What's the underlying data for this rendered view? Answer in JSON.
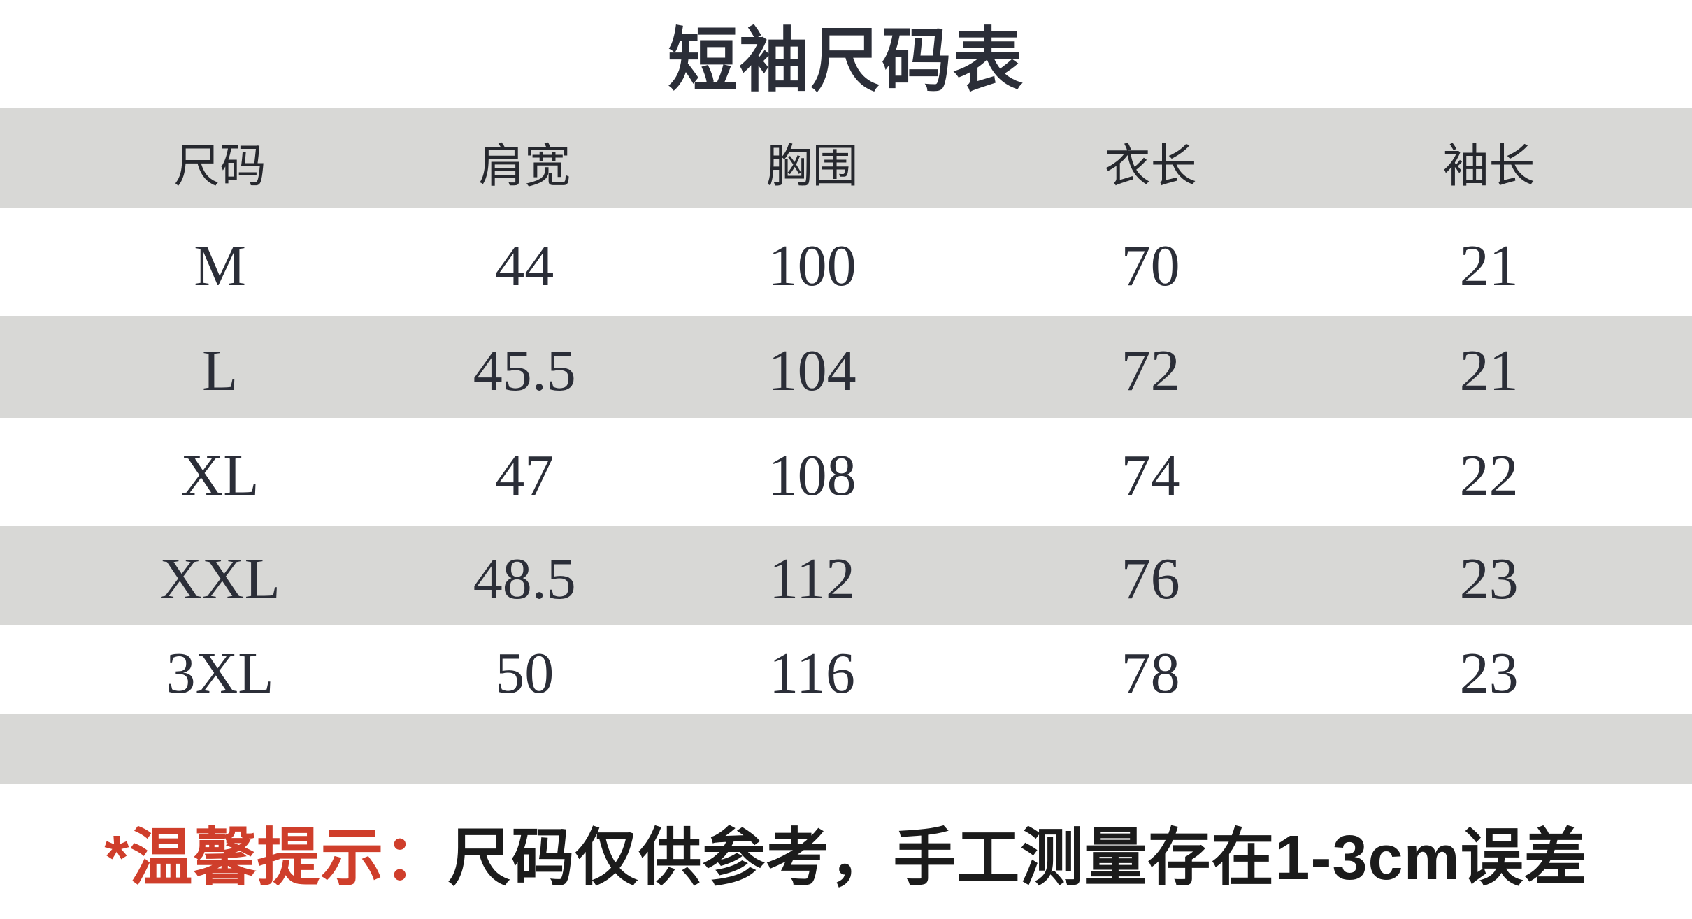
{
  "title": "短袖尺码表",
  "table": {
    "headers": [
      "尺码",
      "肩宽",
      "胸围",
      "衣长",
      "袖长"
    ],
    "rows": [
      [
        "M",
        "44",
        "100",
        "70",
        "21"
      ],
      [
        "L",
        "45.5",
        "104",
        "72",
        "21"
      ],
      [
        "XL",
        "47",
        "108",
        "74",
        "22"
      ],
      [
        "XXL",
        "48.5",
        "112",
        "76",
        "23"
      ],
      [
        "3XL",
        "50",
        "116",
        "78",
        "23"
      ]
    ]
  },
  "note": {
    "prefix": "*温馨提示：",
    "text": "尺码仅供参考，手工测量存在1-3cm误差"
  },
  "colors": {
    "band_gray": "#d8d8d6",
    "text_dark": "#2b2e38",
    "note_red": "#cf3e2b",
    "note_black": "#1b1b1b"
  },
  "chart_data": {
    "type": "table",
    "title": "短袖尺码表",
    "columns": [
      "尺码",
      "肩宽",
      "胸围",
      "衣长",
      "袖长"
    ],
    "rows": [
      [
        "M",
        44,
        100,
        70,
        21
      ],
      [
        "L",
        45.5,
        104,
        72,
        21
      ],
      [
        "XL",
        47,
        108,
        74,
        22
      ],
      [
        "XXL",
        48.5,
        112,
        76,
        23
      ],
      [
        "3XL",
        50,
        116,
        78,
        23
      ]
    ],
    "footnote": "*温馨提示：尺码仅供参考，手工测量存在1-3cm误差",
    "layout_hints": {
      "banding": "alternating gray/white rows, header and empty footer strip gray",
      "alignment": "all cells centered"
    }
  }
}
